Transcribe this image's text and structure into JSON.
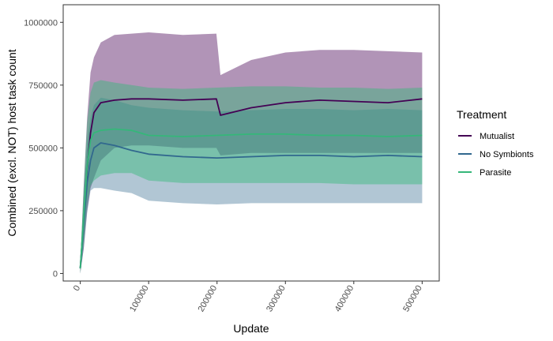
{
  "chart_data": {
    "type": "line",
    "title": "",
    "xlabel": "Update",
    "ylabel": "Combined (excl. NOT) host task count",
    "xlim": [
      -25000,
      525000
    ],
    "ylim": [
      -30000,
      1070000
    ],
    "xticks": [
      0,
      100000,
      200000,
      300000,
      400000,
      500000
    ],
    "xtick_labels": [
      "0",
      "100000",
      "200000",
      "300000",
      "400000",
      "500000"
    ],
    "yticks": [
      0,
      250000,
      500000,
      750000,
      1000000
    ],
    "ytick_labels": [
      "0",
      "250000",
      "500000",
      "750000",
      "1000000"
    ],
    "grid": false,
    "legend": {
      "title": "Treatment",
      "placement": "right"
    },
    "series": [
      {
        "name": "Mutualist",
        "color": "#440154",
        "points": [
          {
            "x": 0,
            "y": 20000,
            "lo": 0,
            "hi": 40000
          },
          {
            "x": 5000,
            "y": 220000,
            "lo": 100000,
            "hi": 350000
          },
          {
            "x": 10000,
            "y": 420000,
            "lo": 250000,
            "hi": 620000
          },
          {
            "x": 15000,
            "y": 560000,
            "lo": 340000,
            "hi": 800000
          },
          {
            "x": 20000,
            "y": 640000,
            "lo": 380000,
            "hi": 860000
          },
          {
            "x": 30000,
            "y": 680000,
            "lo": 450000,
            "hi": 920000
          },
          {
            "x": 50000,
            "y": 690000,
            "lo": 500000,
            "hi": 950000
          },
          {
            "x": 75000,
            "y": 695000,
            "lo": 510000,
            "hi": 955000
          },
          {
            "x": 100000,
            "y": 695000,
            "lo": 510000,
            "hi": 960000
          },
          {
            "x": 150000,
            "y": 690000,
            "lo": 500000,
            "hi": 950000
          },
          {
            "x": 199000,
            "y": 695000,
            "lo": 500000,
            "hi": 955000
          },
          {
            "x": 205000,
            "y": 630000,
            "lo": 470000,
            "hi": 790000
          },
          {
            "x": 250000,
            "y": 660000,
            "lo": 480000,
            "hi": 850000
          },
          {
            "x": 300000,
            "y": 680000,
            "lo": 480000,
            "hi": 880000
          },
          {
            "x": 350000,
            "y": 690000,
            "lo": 480000,
            "hi": 890000
          },
          {
            "x": 400000,
            "y": 685000,
            "lo": 480000,
            "hi": 890000
          },
          {
            "x": 450000,
            "y": 680000,
            "lo": 480000,
            "hi": 885000
          },
          {
            "x": 500000,
            "y": 695000,
            "lo": 480000,
            "hi": 880000
          }
        ]
      },
      {
        "name": "No Symbionts",
        "color": "#31688e",
        "points": [
          {
            "x": 0,
            "y": 20000,
            "lo": 0,
            "hi": 40000
          },
          {
            "x": 5000,
            "y": 200000,
            "lo": 100000,
            "hi": 320000
          },
          {
            "x": 10000,
            "y": 360000,
            "lo": 240000,
            "hi": 520000
          },
          {
            "x": 15000,
            "y": 450000,
            "lo": 330000,
            "hi": 620000
          },
          {
            "x": 20000,
            "y": 500000,
            "lo": 340000,
            "hi": 670000
          },
          {
            "x": 30000,
            "y": 520000,
            "lo": 340000,
            "hi": 700000
          },
          {
            "x": 50000,
            "y": 510000,
            "lo": 330000,
            "hi": 690000
          },
          {
            "x": 75000,
            "y": 490000,
            "lo": 320000,
            "hi": 670000
          },
          {
            "x": 100000,
            "y": 475000,
            "lo": 290000,
            "hi": 660000
          },
          {
            "x": 150000,
            "y": 465000,
            "lo": 280000,
            "hi": 650000
          },
          {
            "x": 200000,
            "y": 460000,
            "lo": 275000,
            "hi": 645000
          },
          {
            "x": 250000,
            "y": 465000,
            "lo": 280000,
            "hi": 650000
          },
          {
            "x": 300000,
            "y": 470000,
            "lo": 280000,
            "hi": 655000
          },
          {
            "x": 350000,
            "y": 470000,
            "lo": 280000,
            "hi": 655000
          },
          {
            "x": 400000,
            "y": 465000,
            "lo": 280000,
            "hi": 650000
          },
          {
            "x": 450000,
            "y": 470000,
            "lo": 280000,
            "hi": 655000
          },
          {
            "x": 500000,
            "y": 465000,
            "lo": 280000,
            "hi": 650000
          }
        ]
      },
      {
        "name": "Parasite",
        "color": "#35b779",
        "points": [
          {
            "x": 0,
            "y": 20000,
            "lo": 0,
            "hi": 40000
          },
          {
            "x": 5000,
            "y": 230000,
            "lo": 120000,
            "hi": 350000
          },
          {
            "x": 10000,
            "y": 430000,
            "lo": 280000,
            "hi": 600000
          },
          {
            "x": 15000,
            "y": 530000,
            "lo": 350000,
            "hi": 720000
          },
          {
            "x": 20000,
            "y": 560000,
            "lo": 370000,
            "hi": 760000
          },
          {
            "x": 30000,
            "y": 570000,
            "lo": 390000,
            "hi": 770000
          },
          {
            "x": 50000,
            "y": 575000,
            "lo": 400000,
            "hi": 760000
          },
          {
            "x": 75000,
            "y": 570000,
            "lo": 400000,
            "hi": 750000
          },
          {
            "x": 100000,
            "y": 550000,
            "lo": 370000,
            "hi": 740000
          },
          {
            "x": 150000,
            "y": 545000,
            "lo": 360000,
            "hi": 735000
          },
          {
            "x": 200000,
            "y": 550000,
            "lo": 360000,
            "hi": 740000
          },
          {
            "x": 250000,
            "y": 555000,
            "lo": 360000,
            "hi": 745000
          },
          {
            "x": 300000,
            "y": 555000,
            "lo": 360000,
            "hi": 745000
          },
          {
            "x": 350000,
            "y": 550000,
            "lo": 360000,
            "hi": 740000
          },
          {
            "x": 400000,
            "y": 550000,
            "lo": 355000,
            "hi": 740000
          },
          {
            "x": 450000,
            "y": 545000,
            "lo": 355000,
            "hi": 735000
          },
          {
            "x": 500000,
            "y": 550000,
            "lo": 355000,
            "hi": 740000
          }
        ]
      }
    ]
  }
}
